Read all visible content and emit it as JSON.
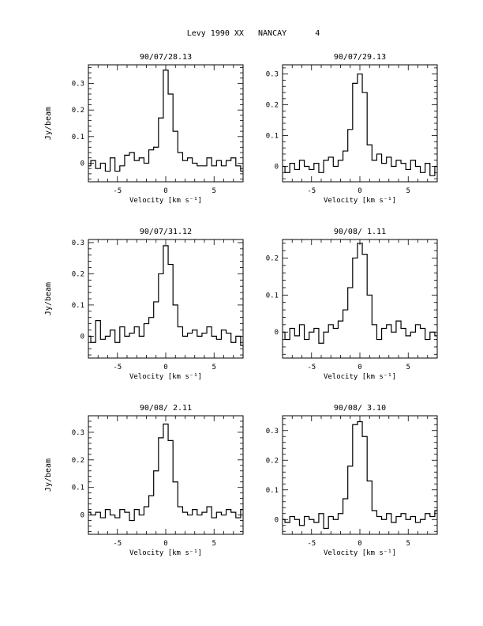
{
  "page": {
    "title": "Levy 1990 XX   NANCAY      4"
  },
  "chart_data": [
    {
      "type": "line",
      "title": "90/07/28.13",
      "xlabel": "Velocity [km s⁻¹]",
      "ylabel": "Jy/beam",
      "xlim": [
        -8,
        8
      ],
      "ylim": [
        -0.07,
        0.37
      ],
      "xticks": [
        -5,
        0,
        5
      ],
      "xtick_labels": [
        "-5",
        "0",
        "5"
      ],
      "yticks": [
        0,
        0.1,
        0.2,
        0.3
      ],
      "ytick_labels": [
        "0",
        "0.1",
        "0.2",
        "0.3"
      ],
      "x": [
        -8,
        -7.5,
        -7,
        -6.5,
        -6,
        -5.5,
        -5,
        -4.5,
        -4,
        -3.5,
        -3,
        -2.5,
        -2,
        -1.5,
        -1,
        -0.5,
        0,
        0.5,
        1,
        1.5,
        2,
        2.5,
        3,
        3.5,
        4,
        4.5,
        5,
        5.5,
        6,
        6.5,
        7,
        7.5,
        8
      ],
      "series": [
        {
          "values": [
            -0.01,
            0.01,
            -0.02,
            0.0,
            -0.03,
            0.02,
            -0.03,
            -0.01,
            0.03,
            0.04,
            0.01,
            0.02,
            0.0,
            0.05,
            0.06,
            0.17,
            0.35,
            0.26,
            0.12,
            0.04,
            0.01,
            0.02,
            0.0,
            -0.01,
            -0.01,
            0.02,
            -0.01,
            0.01,
            -0.01,
            0.01,
            0.02,
            -0.01,
            -0.03
          ]
        }
      ]
    },
    {
      "type": "line",
      "title": "90/07/29.13",
      "xlabel": "Velocity [km s⁻¹]",
      "ylabel": "",
      "xlim": [
        -8,
        8
      ],
      "ylim": [
        -0.05,
        0.33
      ],
      "xticks": [
        -5,
        0,
        5
      ],
      "xtick_labels": [
        "-5",
        "0",
        "5"
      ],
      "yticks": [
        0,
        0.1,
        0.2,
        0.3
      ],
      "ytick_labels": [
        "0",
        "0.1",
        "0.2",
        "0.3"
      ],
      "x": [
        -8,
        -7.5,
        -7,
        -6.5,
        -6,
        -5.5,
        -5,
        -4.5,
        -4,
        -3.5,
        -3,
        -2.5,
        -2,
        -1.5,
        -1,
        -0.5,
        0,
        0.5,
        1,
        1.5,
        2,
        2.5,
        3,
        3.5,
        4,
        4.5,
        5,
        5.5,
        6,
        6.5,
        7,
        7.5,
        8
      ],
      "series": [
        {
          "values": [
            0.0,
            -0.02,
            0.01,
            -0.01,
            0.02,
            0.0,
            -0.01,
            0.01,
            -0.02,
            0.02,
            0.03,
            0.0,
            0.02,
            0.05,
            0.12,
            0.27,
            0.3,
            0.24,
            0.07,
            0.02,
            0.04,
            0.01,
            0.03,
            0.0,
            0.02,
            0.01,
            -0.01,
            0.02,
            0.0,
            -0.02,
            0.01,
            -0.03,
            0.0
          ]
        }
      ]
    },
    {
      "type": "line",
      "title": "90/07/31.12",
      "xlabel": "Velocity [km s⁻¹]",
      "ylabel": "Jy/beam",
      "xlim": [
        -8,
        8
      ],
      "ylim": [
        -0.07,
        0.31
      ],
      "xticks": [
        -5,
        0,
        5
      ],
      "xtick_labels": [
        "-5",
        "0",
        "5"
      ],
      "yticks": [
        0,
        0.1,
        0.2,
        0.3
      ],
      "ytick_labels": [
        "0",
        "0.1",
        "0.2",
        "0.3"
      ],
      "x": [
        -8,
        -7.5,
        -7,
        -6.5,
        -6,
        -5.5,
        -5,
        -4.5,
        -4,
        -3.5,
        -3,
        -2.5,
        -2,
        -1.5,
        -1,
        -0.5,
        0,
        0.5,
        1,
        1.5,
        2,
        2.5,
        3,
        3.5,
        4,
        4.5,
        5,
        5.5,
        6,
        6.5,
        7,
        7.5,
        8
      ],
      "series": [
        {
          "values": [
            0.0,
            -0.02,
            0.05,
            -0.01,
            0.0,
            0.02,
            -0.02,
            0.03,
            0.0,
            0.01,
            0.03,
            0.0,
            0.04,
            0.06,
            0.11,
            0.2,
            0.29,
            0.23,
            0.1,
            0.03,
            0.0,
            0.01,
            0.02,
            0.0,
            0.01,
            0.03,
            0.0,
            -0.01,
            0.02,
            0.01,
            -0.02,
            0.0,
            -0.03
          ]
        }
      ]
    },
    {
      "type": "line",
      "title": "90/08/ 1.11",
      "xlabel": "Velocity [km s⁻¹]",
      "ylabel": "",
      "xlim": [
        -8,
        8
      ],
      "ylim": [
        -0.07,
        0.25
      ],
      "xticks": [
        -5,
        0,
        5
      ],
      "xtick_labels": [
        "-5",
        "0",
        "5"
      ],
      "yticks": [
        0,
        0.1,
        0.2
      ],
      "ytick_labels": [
        "0",
        "0.1",
        "0.2"
      ],
      "x": [
        -8,
        -7.5,
        -7,
        -6.5,
        -6,
        -5.5,
        -5,
        -4.5,
        -4,
        -3.5,
        -3,
        -2.5,
        -2,
        -1.5,
        -1,
        -0.5,
        0,
        0.5,
        1,
        1.5,
        2,
        2.5,
        3,
        3.5,
        4,
        4.5,
        5,
        5.5,
        6,
        6.5,
        7,
        7.5,
        8
      ],
      "series": [
        {
          "values": [
            0.0,
            -0.02,
            0.01,
            -0.01,
            0.02,
            -0.02,
            0.0,
            0.01,
            -0.03,
            0.0,
            0.02,
            0.01,
            0.03,
            0.06,
            0.12,
            0.2,
            0.24,
            0.21,
            0.1,
            0.02,
            -0.02,
            0.01,
            0.02,
            0.0,
            0.03,
            0.01,
            -0.01,
            0.0,
            0.02,
            0.01,
            -0.02,
            0.0,
            -0.01
          ]
        }
      ]
    },
    {
      "type": "line",
      "title": "90/08/ 2.11",
      "xlabel": "Velocity [km s⁻¹]",
      "ylabel": "Jy/beam",
      "xlim": [
        -8,
        8
      ],
      "ylim": [
        -0.07,
        0.36
      ],
      "xticks": [
        -5,
        0,
        5
      ],
      "xtick_labels": [
        "-5",
        "0",
        "5"
      ],
      "yticks": [
        0,
        0.1,
        0.2,
        0.3
      ],
      "ytick_labels": [
        "0",
        "0.1",
        "0.2",
        "0.3"
      ],
      "x": [
        -8,
        -7.5,
        -7,
        -6.5,
        -6,
        -5.5,
        -5,
        -4.5,
        -4,
        -3.5,
        -3,
        -2.5,
        -2,
        -1.5,
        -1,
        -0.5,
        0,
        0.5,
        1,
        1.5,
        2,
        2.5,
        3,
        3.5,
        4,
        4.5,
        5,
        5.5,
        6,
        6.5,
        7,
        7.5,
        8
      ],
      "series": [
        {
          "values": [
            0.01,
            0.0,
            0.01,
            -0.01,
            0.02,
            0.0,
            -0.01,
            0.02,
            0.01,
            -0.02,
            0.02,
            0.0,
            0.03,
            0.07,
            0.16,
            0.28,
            0.33,
            0.27,
            0.12,
            0.03,
            0.01,
            0.0,
            0.02,
            0.0,
            0.01,
            0.03,
            -0.01,
            0.01,
            0.0,
            0.02,
            0.01,
            -0.01,
            0.02
          ]
        }
      ]
    },
    {
      "type": "line",
      "title": "90/08/ 3.10",
      "xlabel": "Velocity [km s⁻¹]",
      "ylabel": "",
      "xlim": [
        -8,
        8
      ],
      "ylim": [
        -0.05,
        0.35
      ],
      "xticks": [
        -5,
        0,
        5
      ],
      "xtick_labels": [
        "-5",
        "0",
        "5"
      ],
      "yticks": [
        0,
        0.1,
        0.2,
        0.3
      ],
      "ytick_labels": [
        "0",
        "0.1",
        "0.2",
        "0.3"
      ],
      "x": [
        -8,
        -7.5,
        -7,
        -6.5,
        -6,
        -5.5,
        -5,
        -4.5,
        -4,
        -3.5,
        -3,
        -2.5,
        -2,
        -1.5,
        -1,
        -0.5,
        0,
        0.5,
        1,
        1.5,
        2,
        2.5,
        3,
        3.5,
        4,
        4.5,
        5,
        5.5,
        6,
        6.5,
        7,
        7.5,
        8
      ],
      "series": [
        {
          "values": [
            0.0,
            -0.01,
            0.01,
            0.0,
            -0.02,
            0.01,
            0.0,
            -0.01,
            0.02,
            -0.03,
            0.01,
            0.0,
            0.02,
            0.07,
            0.18,
            0.32,
            0.33,
            0.28,
            0.13,
            0.03,
            0.01,
            0.0,
            0.02,
            -0.01,
            0.01,
            0.02,
            0.0,
            0.01,
            -0.01,
            0.0,
            0.02,
            0.01,
            0.03
          ]
        }
      ]
    }
  ]
}
